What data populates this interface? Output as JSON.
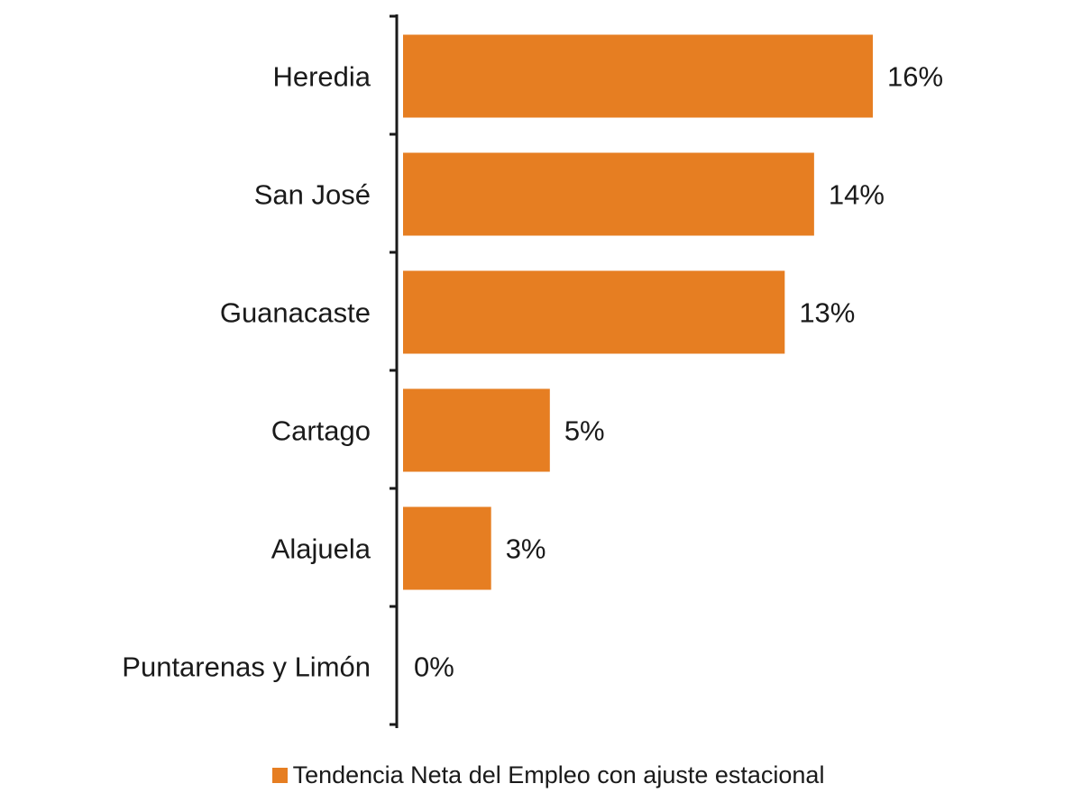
{
  "chart_data": {
    "type": "bar",
    "orientation": "horizontal",
    "categories": [
      "Heredia",
      "San José",
      "Guanacaste",
      "Cartago",
      "Alajuela",
      "Puntarenas y Limón"
    ],
    "series": [
      {
        "name": "Tendencia Neta del Empleo con ajuste estacional",
        "values": [
          16,
          14,
          13,
          5,
          3,
          0
        ],
        "value_labels": [
          "16%",
          "14%",
          "13%",
          "5%",
          "3%",
          "0%"
        ],
        "color": "#e67e22"
      }
    ],
    "title": "",
    "xlabel": "",
    "ylabel": "",
    "xlim": [
      0,
      20
    ],
    "grid": false,
    "legend_placement": "bottom"
  }
}
